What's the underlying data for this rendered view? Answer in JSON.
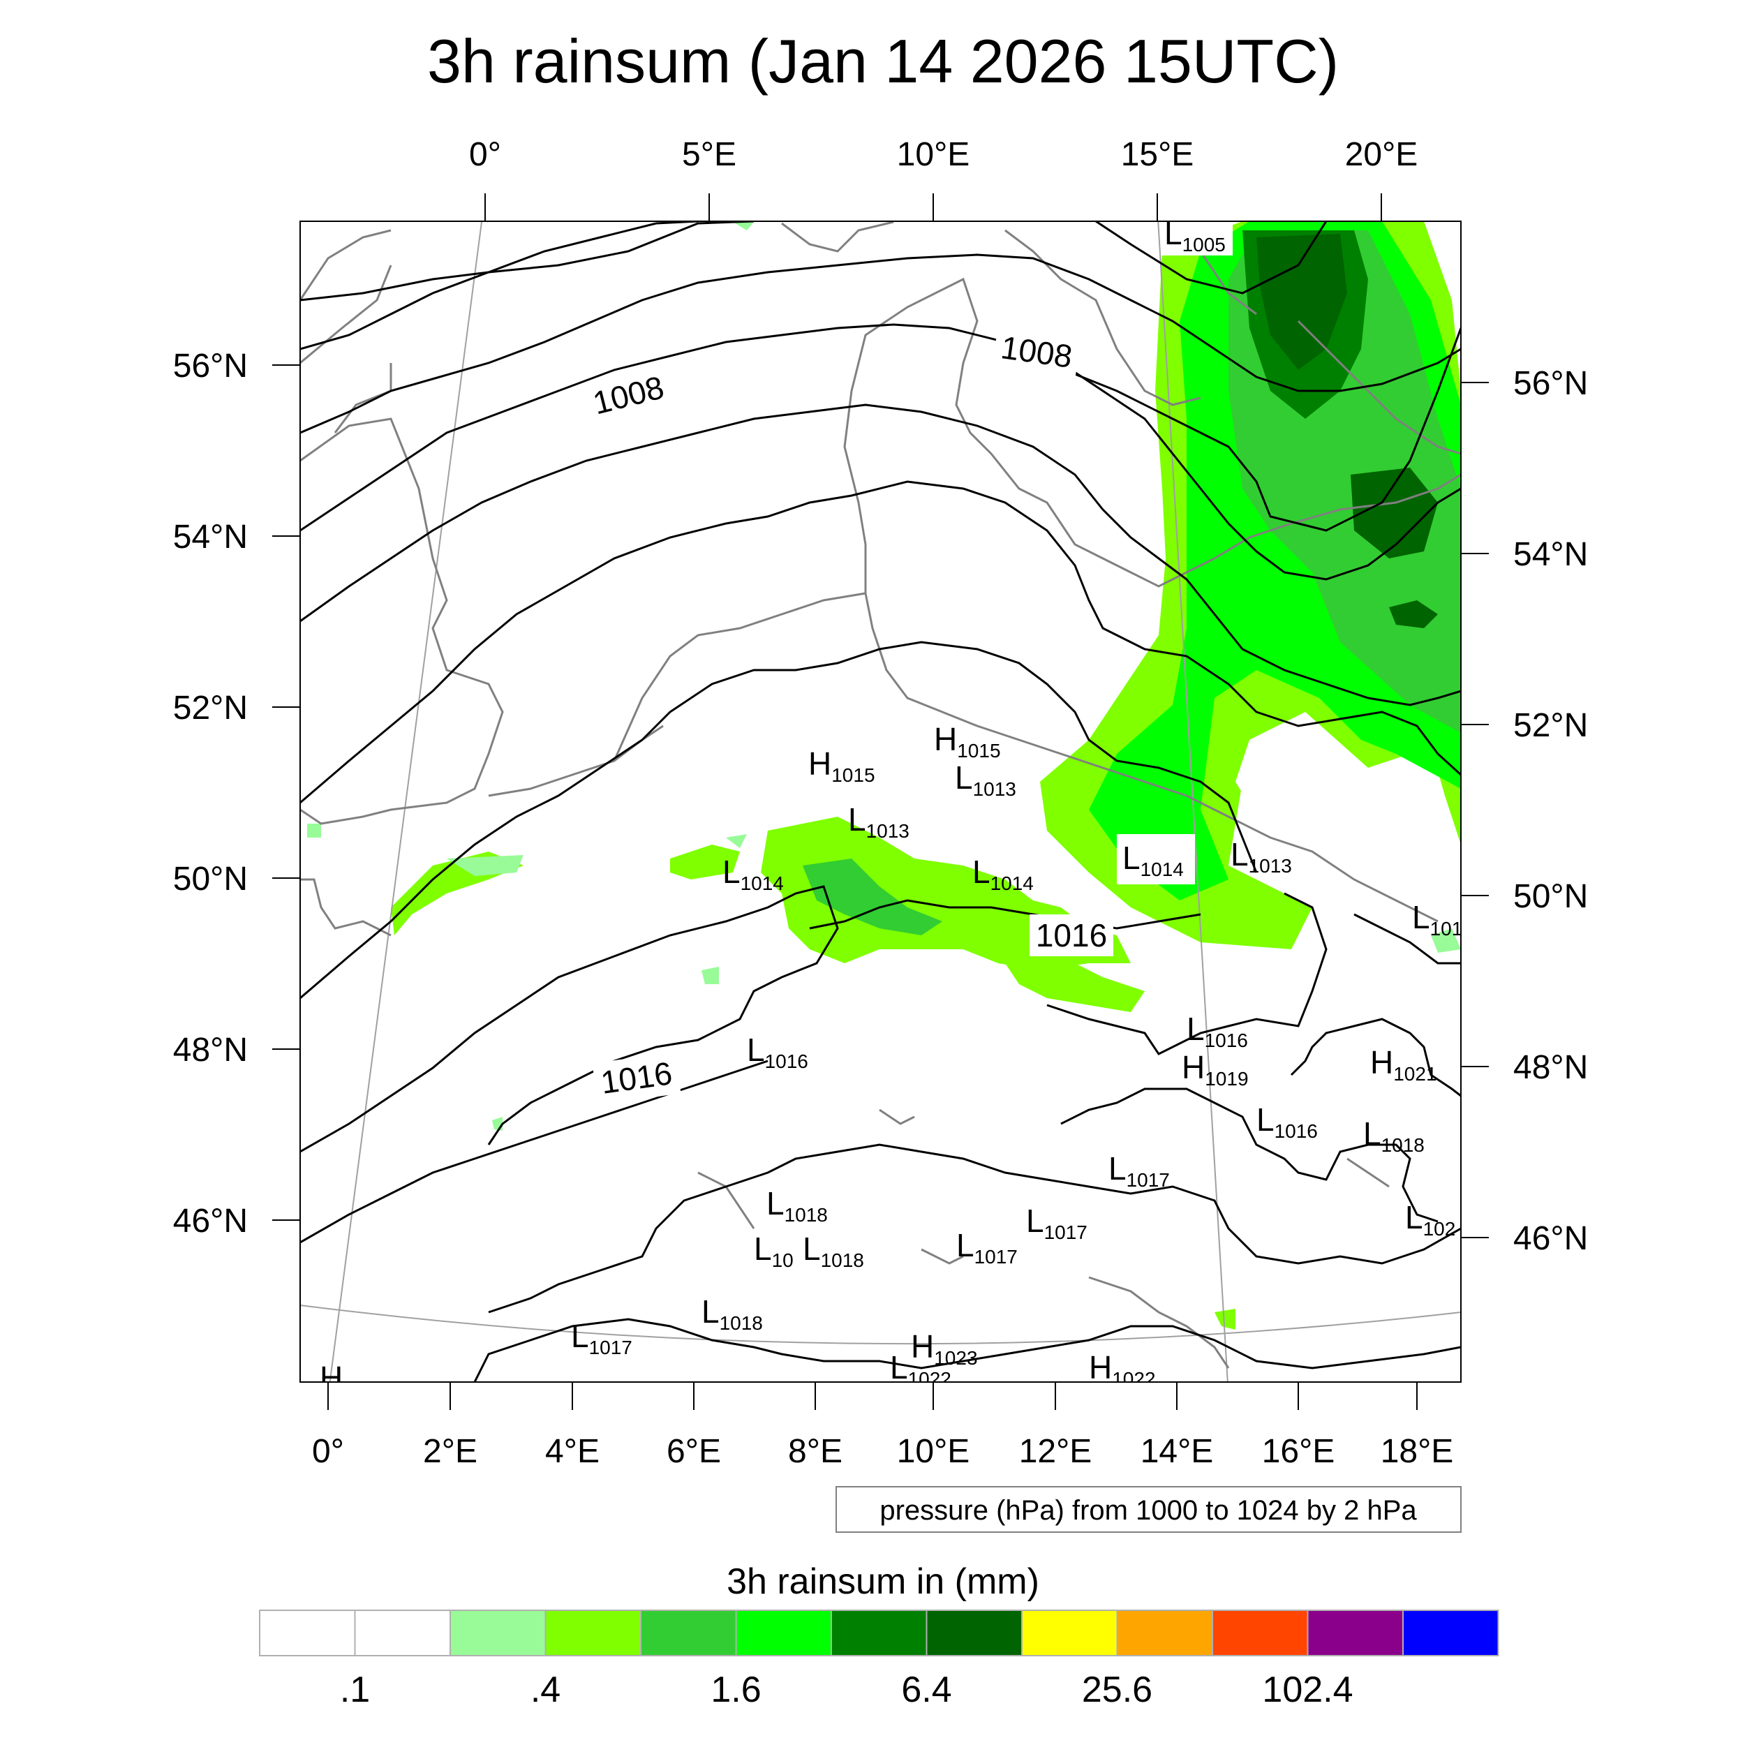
{
  "title": "3h rainsum (Jan 14 2026 15UTC)",
  "map": {
    "top_lon_labels": [
      "0°",
      "5°E",
      "10°E",
      "15°E",
      "20°E"
    ],
    "bottom_lon_labels": [
      "0°",
      "2°E",
      "4°E",
      "6°E",
      "8°E",
      "10°E",
      "12°E",
      "14°E",
      "16°E",
      "18°E"
    ],
    "left_lat_labels": [
      "56°N",
      "54°N",
      "52°N",
      "50°N",
      "48°N",
      "46°N"
    ],
    "right_lat_labels": [
      "56°N",
      "54°N",
      "52°N",
      "50°N",
      "48°N",
      "46°N"
    ],
    "contour_labels": [
      "1008",
      "1008",
      "1016",
      "1016"
    ],
    "pressure_centers": [
      {
        "t": "L",
        "v": "1005"
      },
      {
        "t": "H",
        "v": "1015"
      },
      {
        "t": "H",
        "v": "1015"
      },
      {
        "t": "L",
        "v": "1013"
      },
      {
        "t": "L",
        "v": "1013"
      },
      {
        "t": "L",
        "v": "1014"
      },
      {
        "t": "L",
        "v": "1014"
      },
      {
        "t": "L",
        "v": "1014"
      },
      {
        "t": "L",
        "v": "1013"
      },
      {
        "t": "L",
        "v": "101"
      },
      {
        "t": "L",
        "v": "1016"
      },
      {
        "t": "H",
        "v": "1019"
      },
      {
        "t": "H",
        "v": "1021"
      },
      {
        "t": "L",
        "v": "1016"
      },
      {
        "t": "L",
        "v": "1016"
      },
      {
        "t": "L",
        "v": "1018"
      },
      {
        "t": "L",
        "v": "1017"
      },
      {
        "t": "L",
        "v": "1018"
      },
      {
        "t": "L",
        "v": "102"
      },
      {
        "t": "L",
        "v": "1017"
      },
      {
        "t": "L",
        "v": "10"
      },
      {
        "t": "L",
        "v": "1018"
      },
      {
        "t": "L",
        "v": "1017"
      },
      {
        "t": "L",
        "v": "1018"
      },
      {
        "t": "L",
        "v": "1017"
      },
      {
        "t": "H",
        "v": "1023"
      },
      {
        "t": "L",
        "v": "1022"
      },
      {
        "t": "H",
        "v": "1022"
      },
      {
        "t": "H",
        "v": ""
      }
    ],
    "colors": {
      "contour": "#000000",
      "coastline": "#808080",
      "gridline": "#a0a0a0",
      "rain_light": "#98fb98",
      "rain_lime": "#7fff00",
      "rain_mid": "#32cd32",
      "rain_green": "#00ff00",
      "rain_dark": "#008000",
      "rain_darkest": "#006400"
    }
  },
  "pressure_note": "pressure (hPa) from 1000 to 1024 by 2 hPa",
  "colorbar": {
    "caption": "3h rainsum in (mm)",
    "colors": [
      "#ffffff",
      "#ffffff",
      "#98fb98",
      "#7fff00",
      "#32cd32",
      "#00ff00",
      "#008000",
      "#006400",
      "#ffff00",
      "#ffa500",
      "#ff4500",
      "#8b008b",
      "#0000ff"
    ],
    "labels": [
      ".1",
      ".4",
      "1.6",
      "6.4",
      "25.6",
      "102.4"
    ]
  }
}
